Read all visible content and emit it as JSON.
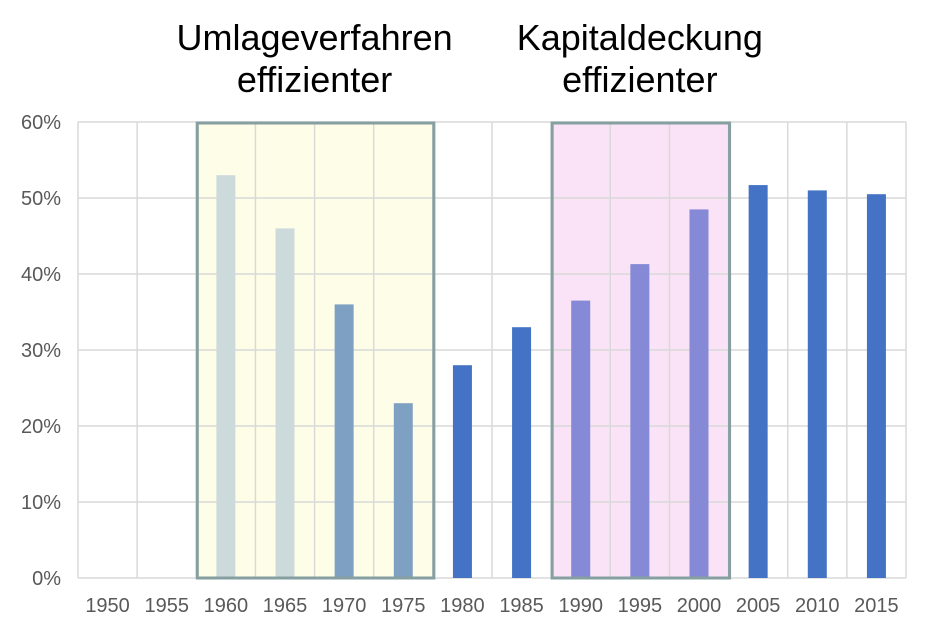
{
  "chart_data": {
    "type": "bar",
    "title": "",
    "xlabel": "",
    "ylabel": "",
    "ylim": [
      0,
      0.6
    ],
    "y_ticks": [
      "0%",
      "10%",
      "20%",
      "30%",
      "40%",
      "50%",
      "60%"
    ],
    "grid": "on",
    "categories": [
      "1950",
      "1955",
      "1960",
      "1965",
      "1970",
      "1975",
      "1980",
      "1985",
      "1990",
      "1995",
      "2000",
      "2005",
      "2010",
      "2015"
    ],
    "values": [
      null,
      null,
      0.53,
      0.46,
      0.36,
      0.23,
      0.28,
      0.33,
      0.365,
      0.413,
      0.485,
      0.517,
      0.51,
      0.505
    ],
    "bar_colors": [
      "#4472c4",
      "#4472c4",
      "#ccdadc",
      "#ccdadc",
      "#7ea0c2",
      "#7ea0c2",
      "#4472c4",
      "#4472c4",
      "#8589d6",
      "#8589d6",
      "#8589d6",
      "#4472c4",
      "#4472c4",
      "#4472c4"
    ],
    "annotations": [
      {
        "lines": [
          "Umlageverfahren",
          "effizienter"
        ],
        "categories": [
          "1960",
          "1975"
        ],
        "fill": "#fefee8",
        "border": "#869fa0"
      },
      {
        "lines": [
          "Kapitaldeckung",
          "effizienter"
        ],
        "categories": [
          "1990",
          "2000"
        ],
        "fill": "#fae3f6",
        "border": "#869fa0"
      }
    ]
  }
}
